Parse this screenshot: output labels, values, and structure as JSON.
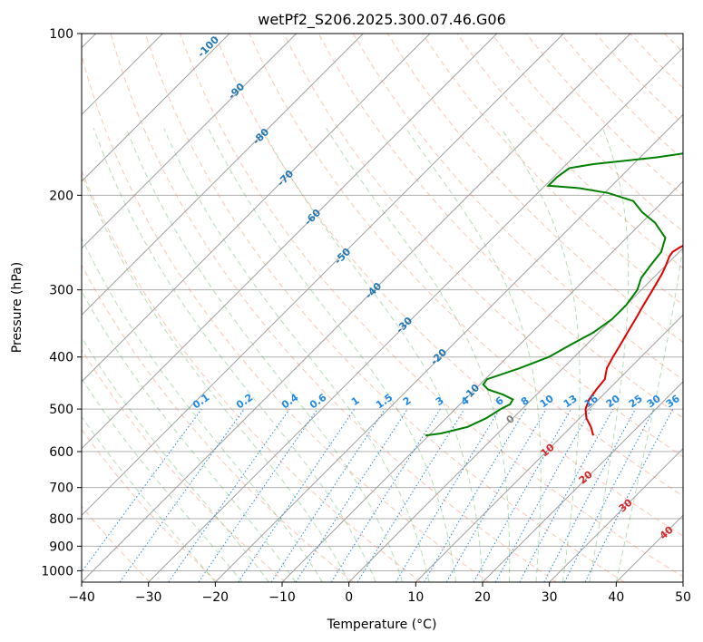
{
  "chart_data": {
    "type": "line",
    "title": "wetPf2_S206.2025.300.07.46.G06",
    "xlabel": "Temperature (°C)",
    "ylabel": "Pressure (hPa)",
    "xlim": [
      -40,
      50
    ],
    "ylim_hpa": [
      1050,
      100
    ],
    "x_ticks": [
      "−40",
      "−30",
      "−20",
      "−10",
      "0",
      "10",
      "20",
      "30",
      "40",
      "50"
    ],
    "x_tick_values": [
      -40,
      -30,
      -20,
      -10,
      0,
      10,
      20,
      30,
      40,
      50
    ],
    "y_ticks": [
      "100",
      "200",
      "300",
      "400",
      "500",
      "600",
      "700",
      "800",
      "900",
      "1000"
    ],
    "y_tick_values": [
      100,
      200,
      300,
      400,
      500,
      600,
      700,
      800,
      900,
      1000
    ],
    "isotherm_labels": [
      "-100",
      "-90",
      "-80",
      "-70",
      "-60",
      "-50",
      "-40",
      "-30",
      "-20",
      "-10"
    ],
    "isotherm_label_values": [
      -100,
      -90,
      -80,
      -70,
      -60,
      -50,
      -40,
      -30,
      -20,
      -10
    ],
    "mixing_ratio_labels": [
      "0.1",
      "0.2",
      "0.4",
      "0.6",
      "1",
      "1.5",
      "2",
      "3",
      "4",
      "6",
      "8",
      "10",
      "13",
      "16",
      "20",
      "25",
      "30",
      "36"
    ],
    "dry_adiabat_labels": [
      "0",
      "10",
      "20",
      "30",
      "40"
    ],
    "series": [
      {
        "name": "Temperature",
        "color": "#e00000",
        "points": [
          {
            "p": 560,
            "t": 14.6
          },
          {
            "p": 540,
            "t": 13.0
          },
          {
            "p": 520,
            "t": 11.0
          },
          {
            "p": 500,
            "t": 9.5
          },
          {
            "p": 480,
            "t": 8.6
          },
          {
            "p": 460,
            "t": 8.2
          },
          {
            "p": 440,
            "t": 7.9
          },
          {
            "p": 420,
            "t": 6.6
          },
          {
            "p": 400,
            "t": 5.8
          },
          {
            "p": 380,
            "t": 5.1
          },
          {
            "p": 360,
            "t": 4.3
          },
          {
            "p": 340,
            "t": 3.5
          },
          {
            "p": 320,
            "t": 2.6
          },
          {
            "p": 300,
            "t": 1.7
          },
          {
            "p": 280,
            "t": 0.7
          },
          {
            "p": 270,
            "t": 0.0
          },
          {
            "p": 260,
            "t": -0.8
          },
          {
            "p": 255,
            "t": -1.0
          },
          {
            "p": 250,
            "t": -0.6
          },
          {
            "p": 240,
            "t": 0.8
          },
          {
            "p": 230,
            "t": 2.2
          },
          {
            "p": 220,
            "t": 3.3
          },
          {
            "p": 210,
            "t": 4.2
          },
          {
            "p": 200,
            "t": 5.5
          },
          {
            "p": 190,
            "t": 6.8
          },
          {
            "p": 180,
            "t": 7.3
          },
          {
            "p": 170,
            "t": 7.3
          },
          {
            "p": 160,
            "t": 8.7
          },
          {
            "p": 150,
            "t": 11.0
          },
          {
            "p": 140,
            "t": 12.0
          },
          {
            "p": 130,
            "t": 13.4
          },
          {
            "p": 120,
            "t": 15.4
          },
          {
            "p": 110,
            "t": 16.6
          },
          {
            "p": 105,
            "t": 17.8
          },
          {
            "p": 100,
            "t": 19.2
          }
        ]
      },
      {
        "name": "Dewpoint",
        "color": "#008000",
        "points": [
          {
            "p": 560,
            "t": -10.5
          },
          {
            "p": 555,
            "t": -8.5
          },
          {
            "p": 540,
            "t": -5.5
          },
          {
            "p": 520,
            "t": -4.0
          },
          {
            "p": 500,
            "t": -3.2
          },
          {
            "p": 490,
            "t": -2.5
          },
          {
            "p": 480,
            "t": -2.8
          },
          {
            "p": 470,
            "t": -5.0
          },
          {
            "p": 460,
            "t": -8.0
          },
          {
            "p": 450,
            "t": -9.5
          },
          {
            "p": 440,
            "t": -9.7
          },
          {
            "p": 420,
            "t": -6.5
          },
          {
            "p": 400,
            "t": -3.8
          },
          {
            "p": 380,
            "t": -2.4
          },
          {
            "p": 360,
            "t": -0.8
          },
          {
            "p": 340,
            "t": 0.0
          },
          {
            "p": 320,
            "t": 0.0
          },
          {
            "p": 300,
            "t": -0.6
          },
          {
            "p": 285,
            "t": -1.8
          },
          {
            "p": 270,
            "t": -2.3
          },
          {
            "p": 255,
            "t": -2.7
          },
          {
            "p": 240,
            "t": -4.2
          },
          {
            "p": 225,
            "t": -8.0
          },
          {
            "p": 215,
            "t": -11.5
          },
          {
            "p": 205,
            "t": -14.5
          },
          {
            "p": 198,
            "t": -19.5
          },
          {
            "p": 194,
            "t": -24.5
          },
          {
            "p": 192,
            "t": -29.5
          },
          {
            "p": 185,
            "t": -29.5
          },
          {
            "p": 178,
            "t": -29.0
          },
          {
            "p": 175,
            "t": -26.0
          },
          {
            "p": 170,
            "t": -17.5
          },
          {
            "p": 165,
            "t": -11.5
          },
          {
            "p": 160,
            "t": -9.0
          },
          {
            "p": 150,
            "t": -7.2
          },
          {
            "p": 140,
            "t": -5.7
          },
          {
            "p": 130,
            "t": -5.4
          },
          {
            "p": 125,
            "t": -5.3
          },
          {
            "p": 120,
            "t": -5.4
          },
          {
            "p": 115,
            "t": -4.0
          },
          {
            "p": 110,
            "t": -1.7
          },
          {
            "p": 105,
            "t": 0.6
          },
          {
            "p": 100,
            "t": 2.0
          }
        ]
      }
    ],
    "colors": {
      "temperature": "#e00000",
      "dewpoint": "#008000",
      "isotherm_label": "#1f77b4",
      "mixing_ratio": "#1e88e5",
      "dry_adiabat": "#ff7f50",
      "moist_adiabat": "#2ca02c",
      "dry_adiabat_label": "#d62728"
    }
  }
}
